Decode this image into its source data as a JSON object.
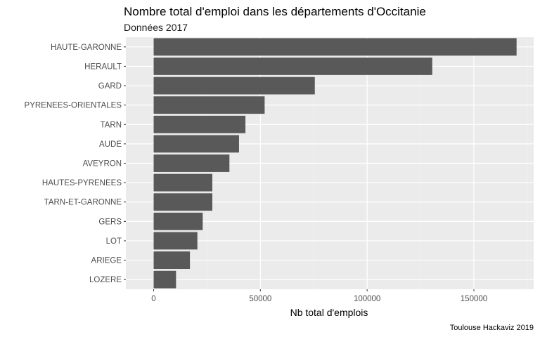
{
  "chart_data": {
    "type": "bar",
    "orientation": "horizontal",
    "title": "Nombre total d'emploi dans les départements d'Occitanie",
    "subtitle": "Données 2017",
    "xlabel": "Nb total d'emplois",
    "ylabel": "",
    "caption": "Toulouse Hackaviz 2019",
    "categories": [
      "HAUTE-GARONNE",
      "HERAULT",
      "GARD",
      "PYRENEES-ORIENTALES",
      "TARN",
      "AUDE",
      "AVEYRON",
      "HAUTES-PYRENEES",
      "TARN-ET-GARONNE",
      "GERS",
      "LOT",
      "ARIEGE",
      "LOZERE"
    ],
    "values": [
      170000,
      130500,
      75500,
      52000,
      43000,
      40000,
      35500,
      27500,
      27500,
      23000,
      20500,
      17000,
      10500
    ],
    "xlim": [
      -13000,
      178000
    ],
    "xticks": [
      0,
      50000,
      100000,
      150000
    ],
    "xtick_labels": [
      "0",
      "50000",
      "100000",
      "150000"
    ],
    "grid": true,
    "colors": {
      "bar": "#595959",
      "panel": "#ebebeb",
      "grid_major": "#ffffff",
      "grid_minor": "#f4f4f4"
    }
  }
}
